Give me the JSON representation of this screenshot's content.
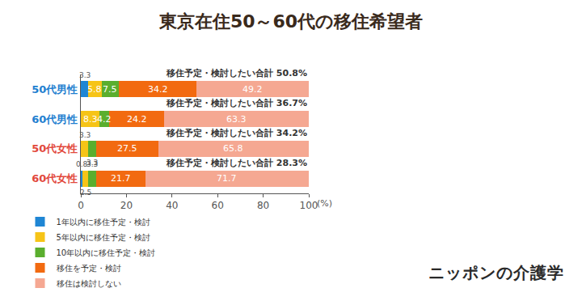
{
  "chart_data": {
    "type": "bar",
    "orientation": "horizontal",
    "stacked": true,
    "data_labels": true,
    "title": "東京在住50～60代の移住希望者",
    "xlabel": "(%)",
    "categories": [
      "50代男性",
      "60代男性",
      "50代女性",
      "60代女性"
    ],
    "series": [
      {
        "name": "1年以内に移住予定・検討",
        "color": "#1f86d4",
        "values": [
          3.3,
          null,
          null,
          0.8
        ]
      },
      {
        "name": "5年以内に移住予定・検討",
        "color": "#f6c417",
        "values": [
          5.8,
          8.3,
          3.3,
          2.5
        ]
      },
      {
        "name": "10年以内に移住予定・検討",
        "color": "#5aae2e",
        "values": [
          7.5,
          4.2,
          3.3,
          3.3
        ]
      },
      {
        "name": "移住を予定・検討",
        "color": "#f26a10",
        "values": [
          34.2,
          24.2,
          27.5,
          21.7
        ]
      },
      {
        "name": "移住は検討しない",
        "color": "#f5a892",
        "values": [
          49.2,
          63.3,
          65.8,
          71.7
        ]
      }
    ],
    "xlim": [
      0,
      100
    ],
    "xticks": [
      0,
      20,
      40,
      60,
      80,
      100
    ],
    "grid": false,
    "legend": "bottom",
    "annotations": [
      {
        "category": "50代男性",
        "text": "移住予定・検討したい合計 50.8%"
      },
      {
        "category": "60代男性",
        "text": "移住予定・検討したい合計 36.7%"
      },
      {
        "category": "50代女性",
        "text": "移住予定・検討したい合計 34.2%"
      },
      {
        "category": "60代女性",
        "text": "移住予定・検討したい合計 28.3%"
      }
    ],
    "source": "ニッポンの介護学"
  }
}
